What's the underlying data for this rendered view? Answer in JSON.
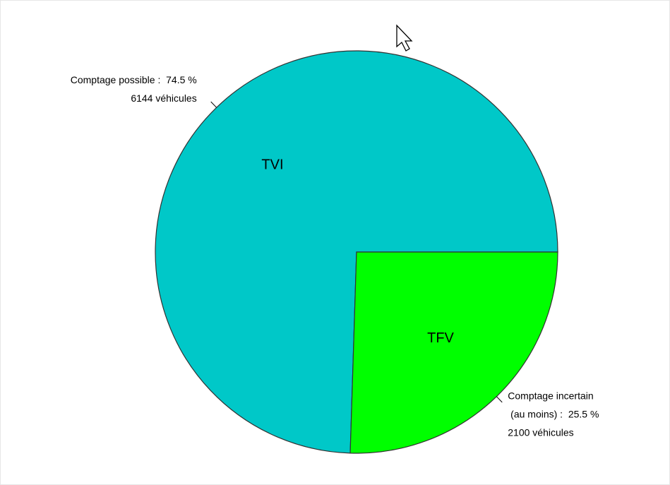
{
  "chart_data": {
    "type": "pie",
    "categories": [
      "TVI",
      "TFV"
    ],
    "values": [
      74.5,
      25.5
    ],
    "counts": [
      6144,
      2100
    ],
    "value_labels": [
      [
        "Comptage possible :  74.5 %",
        "6144 véhicules"
      ],
      [
        "Comptage incertain",
        " (au moins) :  25.5 %",
        "2100 véhicules"
      ]
    ],
    "colors": [
      "#00c8c8",
      "#00ff00"
    ]
  }
}
